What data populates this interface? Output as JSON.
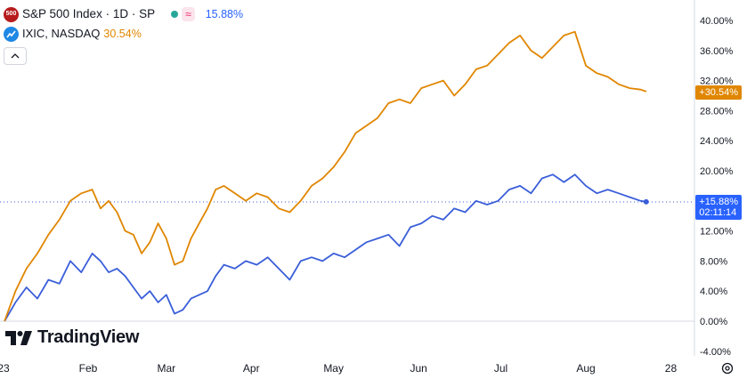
{
  "legend": {
    "main_symbol_badge": "500",
    "main_title": "S&P 500 Index · 1D · SP",
    "main_change": "15.88%",
    "compare_title": "IXIC, NASDAQ",
    "compare_change": "30.54%",
    "collapse_icon": "chevron-up-icon"
  },
  "price_tags": {
    "nasdaq": "+30.54%",
    "spx_value": "+15.88%",
    "spx_countdown": "02:11:14"
  },
  "logo_text": "TradingView",
  "colors": {
    "spx": "#3a5ed9",
    "nasdaq": "#e08600",
    "grid": "#d6d9e0"
  },
  "chart_data": {
    "type": "line",
    "y_tick_labels": [
      "40.00%",
      "36.00%",
      "32.00%",
      "28.00%",
      "24.00%",
      "20.00%",
      "12.00%",
      "8.00%",
      "4.00%",
      "0.00%",
      "-4.00%"
    ],
    "y_ticks": [
      40,
      36,
      32,
      28,
      24,
      20,
      12,
      8,
      4,
      0,
      -4
    ],
    "ylim": [
      -5,
      41
    ],
    "x_tick_labels": [
      "23",
      "Feb",
      "Mar",
      "Apr",
      "May",
      "Jun",
      "Jul",
      "Aug",
      "28"
    ],
    "x_ticks": [
      0,
      30.5,
      59,
      90,
      120,
      151,
      181,
      212,
      243
    ],
    "xlim": [
      0,
      250
    ],
    "series": [
      {
        "name": "S&P 500 Index",
        "x": [
          0,
          4,
          8,
          12,
          16,
          20,
          24,
          28,
          32,
          35,
          38,
          41,
          44,
          47,
          50,
          53,
          56,
          59,
          62,
          65,
          68,
          71,
          74,
          77,
          80,
          84,
          88,
          92,
          96,
          100,
          104,
          108,
          112,
          116,
          120,
          124,
          128,
          132,
          136,
          140,
          144,
          148,
          152,
          156,
          160,
          164,
          168,
          172,
          176,
          180,
          184,
          188,
          192,
          196,
          200,
          204,
          208,
          212,
          216,
          220,
          224,
          228,
          232,
          234
        ],
        "values": [
          0.0,
          2.5,
          4.5,
          3.0,
          5.5,
          5.0,
          8.0,
          6.5,
          9.0,
          8.0,
          6.5,
          7.0,
          6.0,
          4.5,
          3.0,
          4.0,
          2.5,
          3.5,
          1.0,
          1.5,
          3.0,
          3.5,
          4.0,
          6.0,
          7.5,
          7.0,
          8.0,
          7.5,
          8.5,
          7.0,
          5.5,
          8.0,
          8.5,
          8.0,
          9.0,
          8.5,
          9.5,
          10.5,
          11.0,
          11.5,
          10.0,
          12.5,
          13.0,
          14.0,
          13.5,
          15.0,
          14.5,
          16.0,
          15.5,
          16.0,
          17.5,
          18.0,
          17.0,
          19.0,
          19.5,
          18.5,
          19.5,
          18.0,
          17.0,
          17.5,
          17.0,
          16.5,
          16.0,
          15.88
        ]
      },
      {
        "name": "IXIC, NASDAQ",
        "x": [
          0,
          4,
          8,
          12,
          16,
          20,
          24,
          28,
          32,
          35,
          38,
          41,
          44,
          47,
          50,
          53,
          56,
          59,
          62,
          65,
          68,
          71,
          74,
          77,
          80,
          84,
          88,
          92,
          96,
          100,
          104,
          108,
          112,
          116,
          120,
          124,
          128,
          132,
          136,
          140,
          144,
          148,
          152,
          156,
          160,
          164,
          168,
          172,
          176,
          180,
          184,
          188,
          192,
          196,
          200,
          204,
          208,
          212,
          216,
          220,
          224,
          228,
          232,
          234
        ],
        "values": [
          0.0,
          4.0,
          7.0,
          9.0,
          11.5,
          13.5,
          16.0,
          17.0,
          17.5,
          15.0,
          16.0,
          14.5,
          12.0,
          11.5,
          9.0,
          10.5,
          13.0,
          11.0,
          7.5,
          8.0,
          11.0,
          13.0,
          15.0,
          17.5,
          18.0,
          17.0,
          16.0,
          17.0,
          16.5,
          15.0,
          14.5,
          16.0,
          18.0,
          19.0,
          20.5,
          22.5,
          25.0,
          26.0,
          27.0,
          29.0,
          29.5,
          29.0,
          31.0,
          31.5,
          32.0,
          30.0,
          31.5,
          33.5,
          34.0,
          35.5,
          37.0,
          38.0,
          36.0,
          35.0,
          36.5,
          38.0,
          38.5,
          34.0,
          33.0,
          32.5,
          31.5,
          31.0,
          30.8,
          30.54
        ]
      }
    ]
  }
}
